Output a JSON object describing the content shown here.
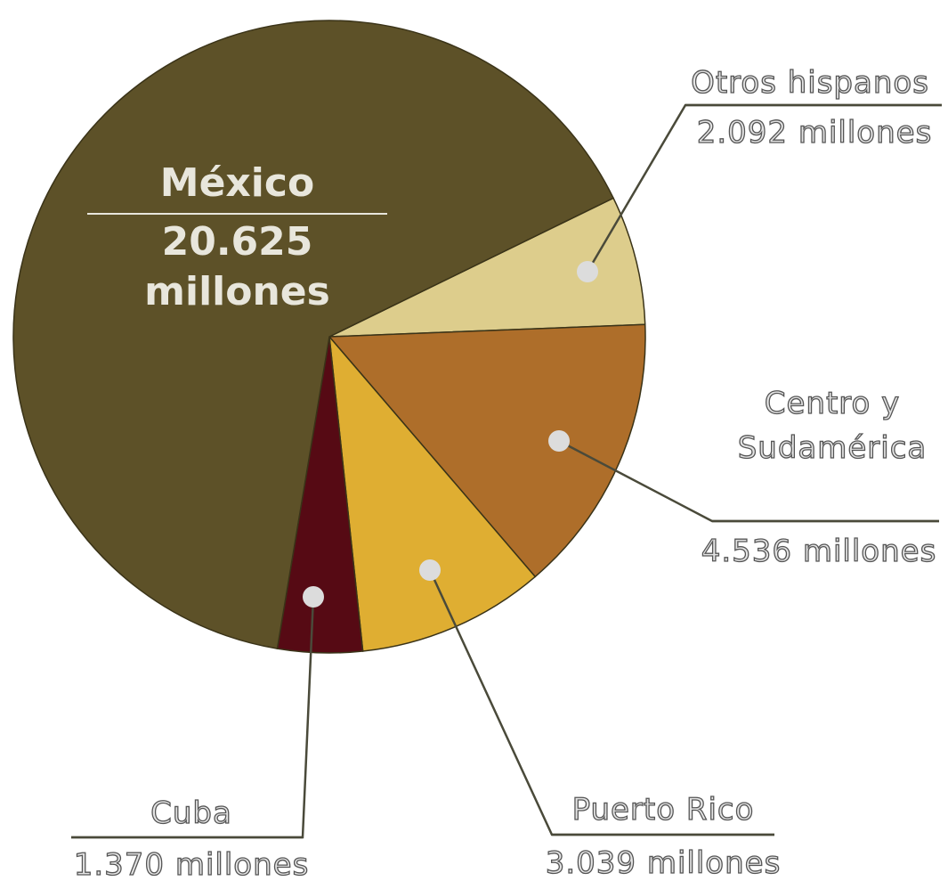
{
  "chart_data": {
    "type": "pie",
    "categories": [
      "Otros hispanos",
      "Centro y Sudamérica",
      "Puerto Rico",
      "Cuba",
      "México"
    ],
    "values": [
      2.092,
      4.536,
      3.039,
      1.37,
      20.625
    ],
    "value_labels": [
      "2.092 millones",
      "4.536 millones",
      "3.039 millones",
      "1.370 millones",
      "20.625 millones"
    ],
    "colors": [
      "#ddcd8c",
      "#ae6e2a",
      "#dfae32",
      "#560a14",
      "#5d5128"
    ]
  }
}
